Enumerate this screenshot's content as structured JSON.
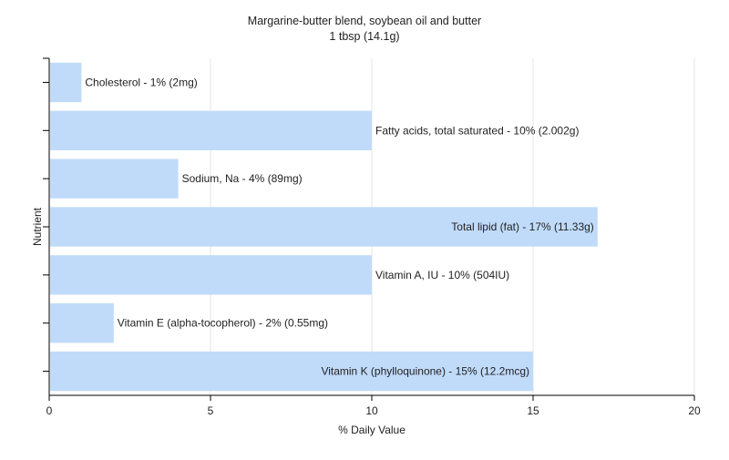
{
  "chart_data": {
    "type": "bar",
    "orientation": "horizontal",
    "title": "Margarine-butter blend, soybean oil and butter",
    "subtitle": "1 tbsp (14.1g)",
    "xlabel": "% Daily Value",
    "ylabel": "Nutrient",
    "xlim": [
      0,
      20
    ],
    "xticks": [
      "0",
      "5",
      "10",
      "15",
      "20"
    ],
    "grid": true,
    "categories": [
      "Cholesterol",
      "Fatty acids, total saturated",
      "Sodium, Na",
      "Total lipid (fat)",
      "Vitamin A, IU",
      "Vitamin E (alpha-tocopherol)",
      "Vitamin K (phylloquinone)"
    ],
    "values": [
      1,
      10,
      4,
      17,
      10,
      2,
      15
    ],
    "labels": [
      "Cholesterol - 1% (2mg)",
      "Fatty acids, total saturated - 10% (2.002g)",
      "Sodium, Na - 4% (89mg)",
      "Total lipid (fat) - 17% (11.33g)",
      "Vitamin A, IU - 10% (504IU)",
      "Vitamin E (alpha-tocopherol) - 2% (0.55mg)",
      "Vitamin K (phylloquinone) - 15% (12.2mcg)"
    ],
    "colors": {
      "bar": "#c0dbfa",
      "grid": "#e4e4e4",
      "axis": "#000000",
      "text": "#222222"
    }
  }
}
